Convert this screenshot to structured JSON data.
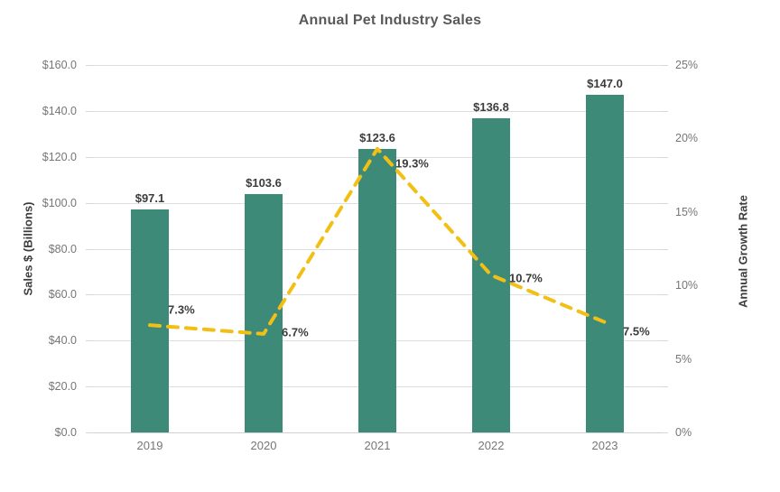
{
  "colors": {
    "bar": "#3e8a79",
    "line": "#f2c014",
    "grid": "#dedede",
    "tick_text": "#767676",
    "data_label_text": "#3c3c3c",
    "title_text": "#595959"
  },
  "chart_data": {
    "type": "bar+line combo",
    "title": "Annual Pet Industry Sales",
    "categories": [
      "2019",
      "2020",
      "2021",
      "2022",
      "2023"
    ],
    "series": [
      {
        "name": "Sales $ (Billions)",
        "type": "bar",
        "axis": "left",
        "values": [
          97.1,
          103.6,
          123.6,
          136.8,
          147.0
        ],
        "labels": [
          "$97.1",
          "$103.6",
          "$123.6",
          "$136.8",
          "$147.0"
        ]
      },
      {
        "name": "Annual Growth Rate",
        "type": "line",
        "axis": "right",
        "line_style": "dashed",
        "values": [
          7.3,
          6.7,
          19.3,
          10.7,
          7.5
        ],
        "labels": [
          "7.3%",
          "6.7%",
          "19.3%",
          "10.7%",
          "7.5%"
        ]
      }
    ],
    "left_axis": {
      "label": "Sales $ (Billions)",
      "min": 0,
      "max": 160,
      "step": 20,
      "ticks": [
        "$0.0",
        "$20.0",
        "$40.0",
        "$60.0",
        "$80.0",
        "$100.0",
        "$120.0",
        "$140.0",
        "$160.0"
      ]
    },
    "right_axis": {
      "label": "Annual Growth Rate",
      "min": 0,
      "max": 25,
      "step": 5,
      "ticks": [
        "0%",
        "5%",
        "10%",
        "15%",
        "20%",
        "25%"
      ]
    },
    "grid": "horizontal gridlines at left-axis steps",
    "legend": "none"
  }
}
